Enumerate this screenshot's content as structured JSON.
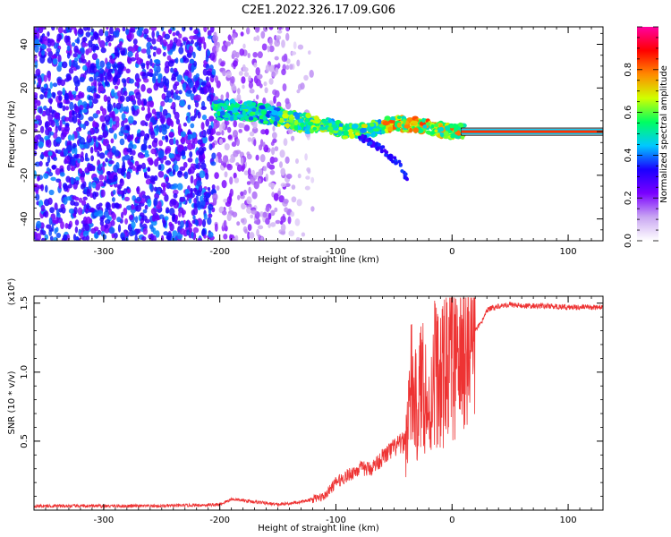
{
  "title": "C2E1.2022.326.17.09.G06",
  "chart_data": [
    {
      "type": "heatmap",
      "xlabel": "Height of straight line (km)",
      "ylabel": "Frequency (Hz)",
      "xlim": [
        -360,
        130
      ],
      "ylim": [
        -50,
        48
      ],
      "xticks": [
        -300,
        -200,
        -100,
        0,
        100
      ],
      "yticks": [
        -40,
        -20,
        0,
        20,
        40
      ],
      "ridge": {
        "x": [
          -205,
          -180,
          -150,
          -130,
          -110,
          -90,
          -70,
          -50,
          -30,
          -10,
          0,
          10,
          130
        ],
        "y": [
          10,
          10,
          7,
          4,
          3,
          0,
          1,
          4,
          3,
          1,
          0,
          0,
          0
        ]
      },
      "branch": {
        "x": [
          -80,
          -60,
          -45,
          -38
        ],
        "y": [
          -2,
          -8,
          -15,
          -23
        ]
      },
      "colorbar": {
        "label": "Normalized spectral amplitude",
        "range": [
          0,
          1
        ],
        "ticks": [
          "0.0",
          "0.2",
          "0.4",
          "0.6",
          "0.8"
        ],
        "colors": [
          "#ffffff",
          "#c9a6f2",
          "#7a00ff",
          "#1a00ff",
          "#00c8ff",
          "#00ff60",
          "#d0ff00",
          "#ff8a00",
          "#ff0000",
          "#ff00a0"
        ]
      }
    },
    {
      "type": "line",
      "xlabel": "Height of straight line (km)",
      "ylabel": "SNR (10 * v/v)",
      "multiplier": "(x10⁴)",
      "xlim": [
        -360,
        130
      ],
      "ylim": [
        0,
        1.55
      ],
      "xticks": [
        -300,
        -200,
        -100,
        0,
        100
      ],
      "yticks": [
        "0.5",
        "1.0",
        "1.5"
      ],
      "ytick_values": [
        0.5,
        1.0,
        1.5
      ],
      "color": "#ee3333",
      "x": [
        -360,
        -300,
        -250,
        -200,
        -190,
        -150,
        -130,
        -110,
        -100,
        -90,
        -80,
        -70,
        -60,
        -50,
        -40,
        -35,
        -30,
        -25,
        -20,
        -15,
        -10,
        -5,
        0,
        5,
        10,
        15,
        20,
        25,
        30,
        40,
        50,
        60,
        80,
        100,
        130
      ],
      "y": [
        0.03,
        0.03,
        0.03,
        0.04,
        0.08,
        0.04,
        0.06,
        0.1,
        0.2,
        0.25,
        0.3,
        0.3,
        0.38,
        0.45,
        0.5,
        0.9,
        0.7,
        1.0,
        0.65,
        1.05,
        0.9,
        1.05,
        1.1,
        1.0,
        1.2,
        1.25,
        1.3,
        1.35,
        1.45,
        1.48,
        1.49,
        1.48,
        1.48,
        1.47,
        1.47
      ]
    }
  ]
}
